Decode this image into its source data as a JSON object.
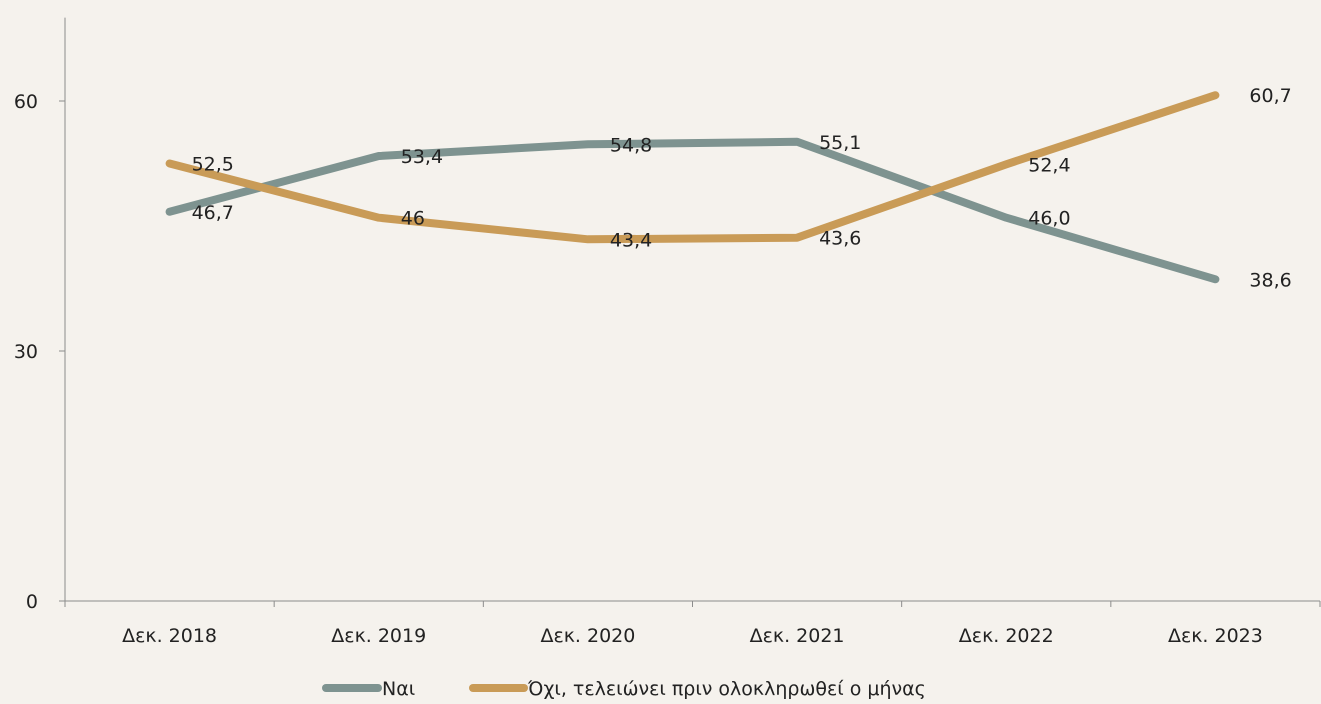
{
  "chart_data": {
    "type": "line",
    "title": "",
    "xlabel": "",
    "ylabel": "",
    "categories": [
      "Δεκ. 2018",
      "Δεκ. 2019",
      "Δεκ. 2020",
      "Δεκ. 2021",
      "Δεκ. 2022",
      "Δεκ. 2023"
    ],
    "ylim": [
      0,
      70
    ],
    "yticks": [
      0,
      30,
      60
    ],
    "ytick_labels": [
      "0",
      "30",
      "60"
    ],
    "grid": false,
    "legend_position": "bottom",
    "series": [
      {
        "name": "Ναι",
        "color": "#7e9390",
        "values": [
          46.7,
          53.4,
          54.8,
          55.1,
          46.0,
          38.6
        ],
        "labels": [
          "46,7",
          "53,4",
          "54,8",
          "55,1",
          "46,0",
          "38,6"
        ]
      },
      {
        "name": "Όχι, τελειώνει πριν ολοκληρωθεί ο μήνας",
        "color": "#c99b57",
        "values": [
          52.5,
          46.0,
          43.4,
          43.6,
          52.4,
          60.7
        ],
        "labels": [
          "52,5",
          "46",
          "43,4",
          "43,6",
          "52,4",
          "60,7"
        ]
      }
    ]
  }
}
